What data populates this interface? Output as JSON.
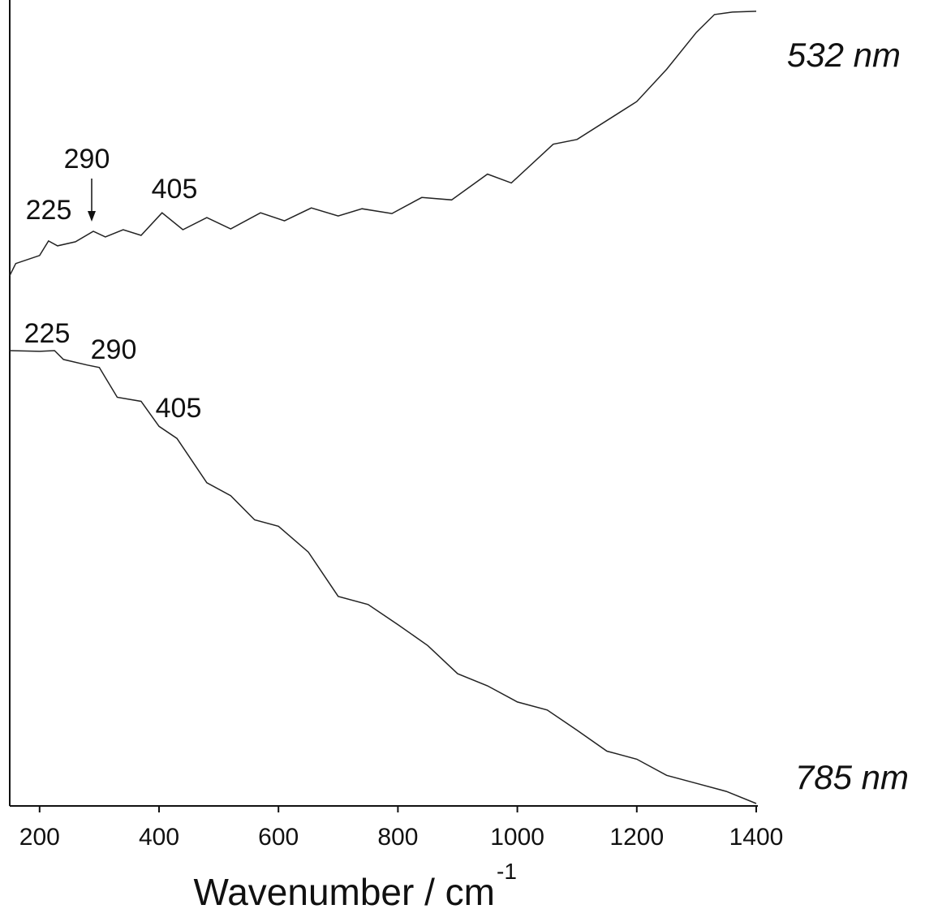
{
  "chart_data": {
    "type": "line",
    "xlabel": "Wavenumber / cm",
    "xlabel_superscript": "-1",
    "xlim": [
      150,
      1400
    ],
    "xticks": [
      200,
      400,
      600,
      800,
      1000,
      1200,
      1400
    ],
    "ylim": [
      0,
      100
    ],
    "series": [
      {
        "name": "532 nm",
        "color": "#222222",
        "x": [
          150,
          160,
          200,
          215,
          230,
          260,
          290,
          310,
          340,
          370,
          405,
          440,
          480,
          520,
          570,
          610,
          655,
          700,
          740,
          790,
          840,
          890,
          950,
          990,
          1060,
          1100,
          1200,
          1250,
          1300,
          1330,
          1360,
          1400
        ],
        "values": [
          65.8,
          67.3,
          68.3,
          70.1,
          69.5,
          70.0,
          71.3,
          70.6,
          71.5,
          70.8,
          73.6,
          71.5,
          73.0,
          71.6,
          73.6,
          72.6,
          74.2,
          73.2,
          74.1,
          73.5,
          75.5,
          75.2,
          78.4,
          77.3,
          82.1,
          82.7,
          87.4,
          91.4,
          96.0,
          98.2,
          98.5,
          98.6
        ],
        "annotations": [
          "225",
          "290",
          "405"
        ]
      },
      {
        "name": "785 nm",
        "color": "#222222",
        "x": [
          150,
          200,
          225,
          240,
          280,
          300,
          330,
          370,
          400,
          430,
          480,
          520,
          560,
          600,
          650,
          700,
          750,
          800,
          850,
          900,
          950,
          1000,
          1050,
          1100,
          1150,
          1200,
          1250,
          1300,
          1350,
          1400
        ],
        "values": [
          56.5,
          56.4,
          56.5,
          55.4,
          54.7,
          54.4,
          50.7,
          50.2,
          47.1,
          45.6,
          40.1,
          38.5,
          35.5,
          34.7,
          31.5,
          26.0,
          25.0,
          22.5,
          19.9,
          16.4,
          14.9,
          12.9,
          11.9,
          9.4,
          6.8,
          5.8,
          3.8,
          2.8,
          1.8,
          0.3
        ],
        "annotations": [
          "225",
          "290",
          "405"
        ]
      }
    ]
  }
}
